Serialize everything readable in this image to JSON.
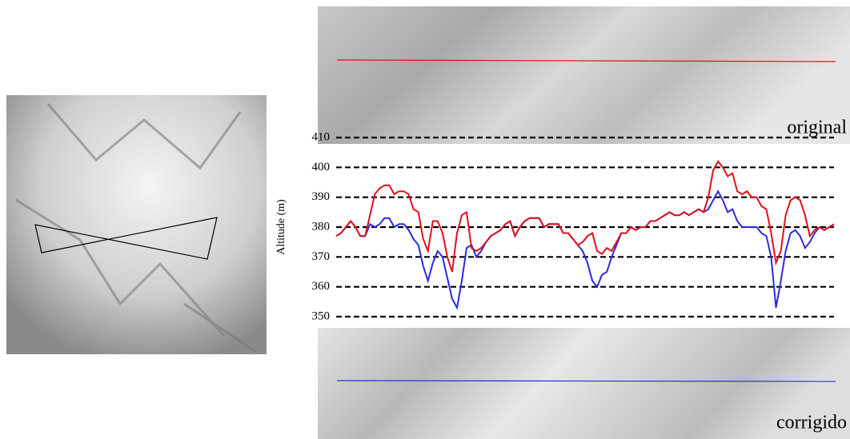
{
  "chart_data": {
    "type": "line",
    "y_label": "Altitude (m)",
    "top_image_label": "original",
    "bottom_image_label": "corrigido",
    "ylim": [
      350,
      410
    ],
    "yticks": [
      350,
      360,
      370,
      380,
      390,
      400,
      410
    ],
    "grid": true,
    "series": [
      {
        "name": "original",
        "color": "#e0101a",
        "values": [
          377,
          378,
          380,
          382,
          380,
          377,
          377,
          384,
          391,
          393,
          394,
          394,
          391,
          392,
          392,
          391,
          386,
          385,
          376,
          372,
          382,
          382,
          378,
          370,
          365,
          378,
          384,
          385,
          373,
          372,
          373,
          375,
          377,
          378,
          379,
          381,
          382,
          377,
          380,
          382,
          383,
          383,
          383,
          380,
          381,
          381,
          381,
          378,
          378,
          376,
          374,
          375,
          377,
          378,
          372,
          371,
          373,
          372,
          375,
          378,
          378,
          380,
          379,
          380,
          380,
          382,
          382,
          383,
          384,
          385,
          384,
          384,
          385,
          384,
          385,
          386,
          385,
          390,
          399,
          402,
          400,
          397,
          398,
          392,
          391,
          392,
          390,
          390,
          387,
          386,
          378,
          368,
          372,
          384,
          389,
          390,
          389,
          384,
          377,
          379,
          380,
          379,
          380,
          381
        ]
      },
      {
        "name": "corrigido",
        "color": "#2a2ae0",
        "values": [
          377,
          378,
          380,
          382,
          380,
          377,
          377,
          381,
          380,
          381,
          383,
          383,
          380,
          381,
          381,
          379,
          376,
          374,
          367,
          362,
          368,
          372,
          370,
          363,
          356,
          353,
          362,
          373,
          374,
          370,
          372,
          375,
          377,
          378,
          379,
          381,
          382,
          377,
          380,
          382,
          383,
          383,
          383,
          380,
          381,
          381,
          381,
          378,
          378,
          376,
          374,
          372,
          368,
          362,
          360,
          364,
          365,
          370,
          374,
          378,
          378,
          380,
          379,
          380,
          380,
          382,
          382,
          383,
          384,
          385,
          384,
          384,
          385,
          384,
          385,
          386,
          385,
          386,
          389,
          392,
          389,
          385,
          386,
          382,
          380,
          380,
          380,
          380,
          378,
          377,
          370,
          353,
          362,
          372,
          378,
          379,
          377,
          373,
          375,
          378,
          380,
          379,
          380,
          381
        ]
      }
    ]
  }
}
